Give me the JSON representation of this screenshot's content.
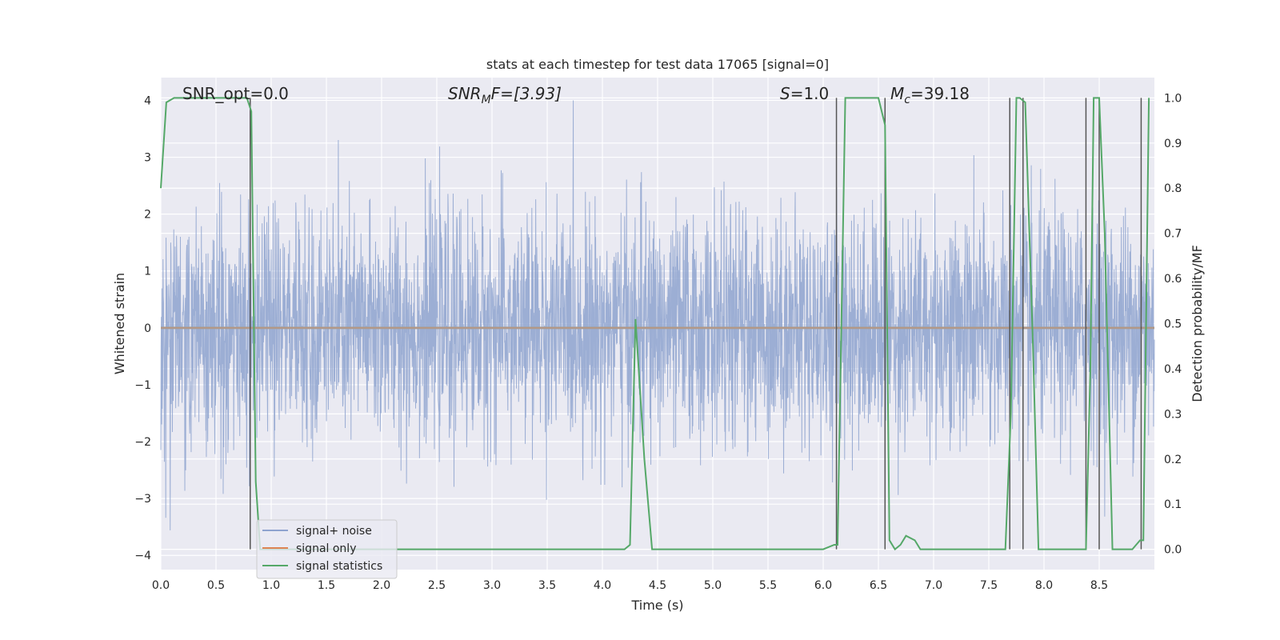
{
  "chart_data": {
    "type": "line",
    "title": "stats at each timestep for test data 17065 [signal=0]",
    "xlabel": "Time (s)",
    "ylabel": "Whitened strain",
    "y2label": "Detection probability/MF",
    "xlim": [
      0.0,
      9.0
    ],
    "ylim": [
      -4.25,
      4.4
    ],
    "y2lim": [
      -0.045,
      1.045
    ],
    "xticks": [
      "0.0",
      "0.5",
      "1.0",
      "1.5",
      "2.0",
      "2.5",
      "3.0",
      "3.5",
      "4.0",
      "4.5",
      "5.0",
      "5.5",
      "6.0",
      "6.5",
      "7.0",
      "7.5",
      "8.0",
      "8.5"
    ],
    "xtick_values": [
      0,
      0.5,
      1,
      1.5,
      2,
      2.5,
      3,
      3.5,
      4,
      4.5,
      5,
      5.5,
      6,
      6.5,
      7,
      7.5,
      8,
      8.5
    ],
    "yticks": [
      "−4",
      "−3",
      "−2",
      "−1",
      "0",
      "1",
      "2",
      "3",
      "4"
    ],
    "ytick_values": [
      -4,
      -3,
      -2,
      -1,
      0,
      1,
      2,
      3,
      4
    ],
    "y2ticks": [
      "0.0",
      "0.1",
      "0.2",
      "0.3",
      "0.4",
      "0.5",
      "0.6",
      "0.7",
      "0.8",
      "0.9",
      "1.0"
    ],
    "y2tick_values": [
      0,
      0.1,
      0.2,
      0.3,
      0.4,
      0.5,
      0.6,
      0.7,
      0.8,
      0.9,
      1.0
    ],
    "grid": true,
    "legend_position": "bottom-left",
    "annotations": {
      "snr_opt": "SNR_opt=0.0",
      "snr_mf_main": "SNR",
      "snr_mf_sub": "M",
      "snr_mf_rest": "F=[3.93]",
      "s_italic": "S",
      "s_value": "=1.0",
      "mc_italic": "M",
      "mc_sub": "c",
      "mc_value": "=39.18"
    },
    "series": [
      {
        "name": "signal+ noise",
        "color": "#8ea3cf",
        "axis": "left",
        "noise": {
          "amplitude_sigma": 1.0,
          "envelope_max": 4.0
        }
      },
      {
        "name": "signal only",
        "color": "#dd8452",
        "axis": "left",
        "x": [
          0.0,
          9.0
        ],
        "y": [
          0.0,
          0.0
        ]
      },
      {
        "name": "signal statistics",
        "color": "#55a868",
        "axis": "right",
        "x": [
          0.0,
          0.05,
          0.12,
          0.2,
          0.3,
          0.4,
          0.5,
          0.6,
          0.7,
          0.78,
          0.82,
          0.86,
          0.9,
          1.0,
          1.5,
          2.0,
          2.5,
          3.0,
          3.5,
          4.0,
          4.2,
          4.25,
          4.3,
          4.38,
          4.45,
          4.6,
          5.0,
          5.5,
          6.0,
          6.1,
          6.13,
          6.2,
          6.3,
          6.5,
          6.56,
          6.6,
          6.65,
          6.7,
          6.75,
          6.83,
          6.88,
          6.95,
          7.0,
          7.5,
          7.65,
          7.7,
          7.75,
          7.78,
          7.83,
          7.9,
          7.95,
          8.0,
          8.3,
          8.38,
          8.42,
          8.45,
          8.5,
          8.55,
          8.62,
          8.7,
          8.8,
          8.87,
          8.9,
          8.95
        ],
        "y": [
          0.8,
          0.99,
          1.0,
          1.0,
          1.0,
          1.0,
          1.0,
          1.0,
          1.0,
          1.0,
          0.97,
          0.15,
          0.0,
          0.0,
          0.0,
          0.0,
          0.0,
          0.0,
          0.0,
          0.0,
          0.0,
          0.01,
          0.51,
          0.2,
          0.0,
          0.0,
          0.0,
          0.0,
          0.0,
          0.01,
          0.01,
          1.0,
          1.0,
          1.0,
          0.94,
          0.02,
          0.0,
          0.01,
          0.03,
          0.02,
          0.0,
          0.0,
          0.0,
          0.0,
          0.0,
          0.3,
          1.0,
          1.0,
          0.99,
          0.45,
          0.0,
          0.0,
          0.0,
          0.0,
          0.4,
          1.0,
          1.0,
          0.7,
          0.0,
          0.0,
          0.0,
          0.02,
          0.02,
          1.0
        ]
      }
    ],
    "vertical_lines_x": [
      0.81,
      6.12,
      6.56,
      7.69,
      7.81,
      8.38,
      8.5,
      8.88
    ],
    "grey_zero_line": 0.0
  }
}
